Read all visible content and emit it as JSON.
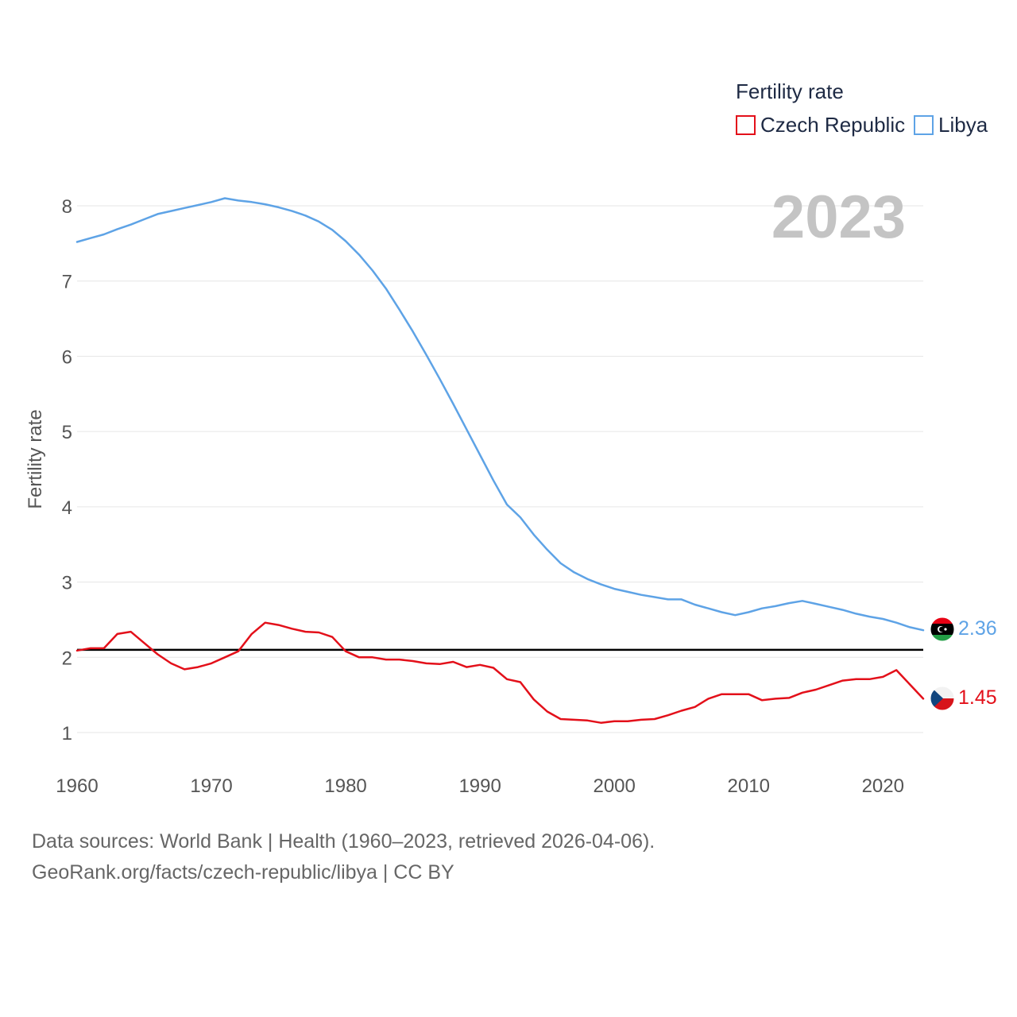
{
  "chart_data": {
    "type": "line",
    "year_label": "2023",
    "ylabel": "Fertility rate",
    "legend_title": "Fertility rate",
    "xlim": [
      1960,
      2023
    ],
    "ylim": [
      0.5,
      8.5
    ],
    "x_ticks": [
      "1960",
      "1970",
      "1980",
      "1990",
      "2000",
      "2010",
      "2020"
    ],
    "y_ticks": [
      "1",
      "2",
      "3",
      "4",
      "5",
      "6",
      "7",
      "8"
    ],
    "reference_line": 2.1,
    "x": [
      1960,
      1961,
      1962,
      1963,
      1964,
      1965,
      1966,
      1967,
      1968,
      1969,
      1970,
      1971,
      1972,
      1973,
      1974,
      1975,
      1976,
      1977,
      1978,
      1979,
      1980,
      1981,
      1982,
      1983,
      1984,
      1985,
      1986,
      1987,
      1988,
      1989,
      1990,
      1991,
      1992,
      1993,
      1994,
      1995,
      1996,
      1997,
      1998,
      1999,
      2000,
      2001,
      2002,
      2003,
      2004,
      2005,
      2006,
      2007,
      2008,
      2009,
      2010,
      2011,
      2012,
      2013,
      2014,
      2015,
      2016,
      2017,
      2018,
      2019,
      2020,
      2021,
      2022,
      2023
    ],
    "series": [
      {
        "name": "Czech Republic",
        "color": "#e3101a",
        "end_label": "1.45",
        "flag": "czech-flag",
        "values": [
          2.09,
          2.12,
          2.12,
          2.31,
          2.34,
          2.19,
          2.04,
          1.92,
          1.84,
          1.87,
          1.92,
          2.0,
          2.08,
          2.31,
          2.46,
          2.43,
          2.38,
          2.34,
          2.33,
          2.27,
          2.08,
          2.0,
          2.0,
          1.97,
          1.97,
          1.95,
          1.92,
          1.91,
          1.94,
          1.87,
          1.9,
          1.86,
          1.71,
          1.67,
          1.44,
          1.28,
          1.18,
          1.17,
          1.16,
          1.13,
          1.15,
          1.15,
          1.17,
          1.18,
          1.23,
          1.29,
          1.34,
          1.45,
          1.51,
          1.51,
          1.51,
          1.43,
          1.45,
          1.46,
          1.53,
          1.57,
          1.63,
          1.69,
          1.71,
          1.71,
          1.74,
          1.83,
          1.64,
          1.45
        ]
      },
      {
        "name": "Libya",
        "color": "#5ea3e6",
        "end_label": "2.36",
        "flag": "libya-flag",
        "values": [
          7.52,
          7.57,
          7.62,
          7.69,
          7.75,
          7.82,
          7.89,
          7.93,
          7.97,
          8.01,
          8.05,
          8.1,
          8.07,
          8.05,
          8.02,
          7.98,
          7.93,
          7.87,
          7.79,
          7.68,
          7.53,
          7.35,
          7.14,
          6.9,
          6.62,
          6.33,
          6.02,
          5.7,
          5.37,
          5.03,
          4.69,
          4.35,
          4.03,
          3.86,
          3.63,
          3.43,
          3.25,
          3.13,
          3.04,
          2.97,
          2.91,
          2.87,
          2.83,
          2.8,
          2.77,
          2.77,
          2.7,
          2.65,
          2.6,
          2.56,
          2.6,
          2.65,
          2.68,
          2.72,
          2.75,
          2.71,
          2.67,
          2.63,
          2.58,
          2.54,
          2.51,
          2.46,
          2.4,
          2.36
        ]
      }
    ]
  },
  "footer": {
    "line1": "Data sources: World Bank | Health (1960–2023, retrieved 2026-04-06).",
    "line2": "GeoRank.org/facts/czech-republic/libya | CC BY"
  }
}
